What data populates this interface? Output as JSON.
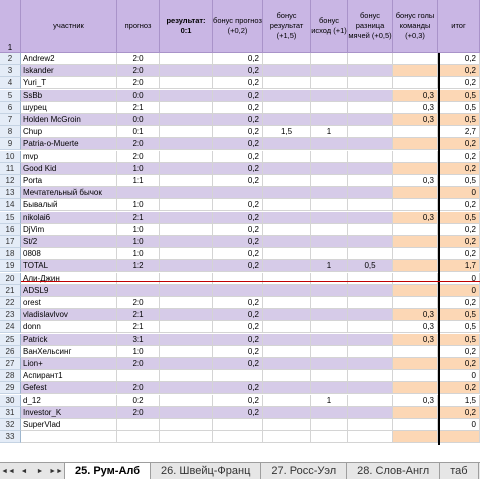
{
  "header": {
    "row_number": "1",
    "columns": [
      "участник",
      "прогноз",
      "результат: 0:1",
      "бонус прогноз (+0,2)",
      "бонус результат (+1,5)",
      "бонус исход (+1)",
      "бонус разница мячей (+0,5)",
      "бонус голы команды (+0,3)",
      "итог"
    ]
  },
  "rows": [
    {
      "n": "2",
      "name": "Andrew2",
      "prog": "2:0",
      "b1": "0,2",
      "b2": "",
      "b3": "",
      "b4": "",
      "b5": "",
      "total": "0,2"
    },
    {
      "n": "3",
      "name": "Iskander",
      "prog": "2:0",
      "b1": "0,2",
      "b2": "",
      "b3": "",
      "b4": "",
      "b5": "",
      "total": "0,2"
    },
    {
      "n": "4",
      "name": "Yuri_T",
      "prog": "2:0",
      "b1": "0,2",
      "b2": "",
      "b3": "",
      "b4": "",
      "b5": "",
      "total": "0,2"
    },
    {
      "n": "5",
      "name": "SsBb",
      "prog": "0:0",
      "b1": "0,2",
      "b2": "",
      "b3": "",
      "b4": "",
      "b5": "0,3",
      "total": "0,5"
    },
    {
      "n": "6",
      "name": "шурец",
      "prog": "2:1",
      "b1": "0,2",
      "b2": "",
      "b3": "",
      "b4": "",
      "b5": "0,3",
      "total": "0,5"
    },
    {
      "n": "7",
      "name": "Holden McGroin",
      "prog": "0:0",
      "b1": "0,2",
      "b2": "",
      "b3": "",
      "b4": "",
      "b5": "0,3",
      "total": "0,5"
    },
    {
      "n": "8",
      "name": "Chup",
      "prog": "0:1",
      "b1": "0,2",
      "b2": "1,5",
      "b3": "1",
      "b4": "",
      "b5": "",
      "total": "2,7"
    },
    {
      "n": "9",
      "name": "Patria-o-Muerte",
      "prog": "2:0",
      "b1": "0,2",
      "b2": "",
      "b3": "",
      "b4": "",
      "b5": "",
      "total": "0,2"
    },
    {
      "n": "10",
      "name": "mvp",
      "prog": "2:0",
      "b1": "0,2",
      "b2": "",
      "b3": "",
      "b4": "",
      "b5": "",
      "total": "0,2"
    },
    {
      "n": "11",
      "name": "Good Kid",
      "prog": "1:0",
      "b1": "0,2",
      "b2": "",
      "b3": "",
      "b4": "",
      "b5": "",
      "total": "0,2"
    },
    {
      "n": "12",
      "name": "Porta",
      "prog": "1:1",
      "b1": "0,2",
      "b2": "",
      "b3": "",
      "b4": "",
      "b5": "0,3",
      "total": "0,5"
    },
    {
      "n": "13",
      "name": "Мечтательный бычок",
      "prog": "",
      "b1": "",
      "b2": "",
      "b3": "",
      "b4": "",
      "b5": "",
      "total": "0"
    },
    {
      "n": "14",
      "name": "Бывалый",
      "prog": "1:0",
      "b1": "0,2",
      "b2": "",
      "b3": "",
      "b4": "",
      "b5": "",
      "total": "0,2"
    },
    {
      "n": "15",
      "name": "nikolai6",
      "prog": "2:1",
      "b1": "0,2",
      "b2": "",
      "b3": "",
      "b4": "",
      "b5": "0,3",
      "total": "0,5"
    },
    {
      "n": "16",
      "name": "DjVim",
      "prog": "1:0",
      "b1": "0,2",
      "b2": "",
      "b3": "",
      "b4": "",
      "b5": "",
      "total": "0,2"
    },
    {
      "n": "17",
      "name": "St/2",
      "prog": "1:0",
      "b1": "0,2",
      "b2": "",
      "b3": "",
      "b4": "",
      "b5": "",
      "total": "0,2"
    },
    {
      "n": "18",
      "name": "0808",
      "prog": "1:0",
      "b1": "0,2",
      "b2": "",
      "b3": "",
      "b4": "",
      "b5": "",
      "total": "0,2"
    },
    {
      "n": "19",
      "name": "TOTAL",
      "prog": "1:2",
      "b1": "0,2",
      "b2": "",
      "b3": "1",
      "b4": "0,5",
      "b5": "",
      "total": "1,7"
    },
    {
      "n": "20",
      "name": "Али-Джин",
      "prog": "",
      "b1": "",
      "b2": "",
      "b3": "",
      "b4": "",
      "b5": "",
      "total": "0"
    },
    {
      "n": "21",
      "name": "ADSL9",
      "prog": "",
      "b1": "",
      "b2": "",
      "b3": "",
      "b4": "",
      "b5": "",
      "total": "0"
    },
    {
      "n": "22",
      "name": "orest",
      "prog": "2:0",
      "b1": "0,2",
      "b2": "",
      "b3": "",
      "b4": "",
      "b5": "",
      "total": "0,2"
    },
    {
      "n": "23",
      "name": "vladislavlvov",
      "prog": "2:1",
      "b1": "0,2",
      "b2": "",
      "b3": "",
      "b4": "",
      "b5": "0,3",
      "total": "0,5"
    },
    {
      "n": "24",
      "name": "donn",
      "prog": "2:1",
      "b1": "0,2",
      "b2": "",
      "b3": "",
      "b4": "",
      "b5": "0,3",
      "total": "0,5"
    },
    {
      "n": "25",
      "name": "Patrick",
      "prog": "3:1",
      "b1": "0,2",
      "b2": "",
      "b3": "",
      "b4": "",
      "b5": "0,3",
      "total": "0,5"
    },
    {
      "n": "26",
      "name": "ВанХельсинг",
      "prog": "1:0",
      "b1": "0,2",
      "b2": "",
      "b3": "",
      "b4": "",
      "b5": "",
      "total": "0,2"
    },
    {
      "n": "27",
      "name": "Lion+",
      "prog": "2:0",
      "b1": "0,2",
      "b2": "",
      "b3": "",
      "b4": "",
      "b5": "",
      "total": "0,2"
    },
    {
      "n": "28",
      "name": "Аспирант1",
      "prog": "",
      "b1": "",
      "b2": "",
      "b3": "",
      "b4": "",
      "b5": "",
      "total": "0"
    },
    {
      "n": "29",
      "name": "Gefest",
      "prog": "2:0",
      "b1": "0,2",
      "b2": "",
      "b3": "",
      "b4": "",
      "b5": "",
      "total": "0,2"
    },
    {
      "n": "30",
      "name": "d_12",
      "prog": "0:2",
      "b1": "0,2",
      "b2": "",
      "b3": "1",
      "b4": "",
      "b5": "0,3",
      "total": "1,5"
    },
    {
      "n": "31",
      "name": "Investor_K",
      "prog": "2:0",
      "b1": "0,2",
      "b2": "",
      "b3": "",
      "b4": "",
      "b5": "",
      "total": "0,2"
    },
    {
      "n": "32",
      "name": "SuperVlad",
      "prog": "",
      "b1": "",
      "b2": "",
      "b3": "",
      "b4": "",
      "b5": "",
      "total": "0"
    },
    {
      "n": "33",
      "name": "",
      "prog": "",
      "b1": "",
      "b2": "",
      "b3": "",
      "b4": "",
      "b5": "",
      "total": ""
    }
  ],
  "tabs": {
    "nav": [
      "◄◄",
      "◄",
      "►",
      "►►"
    ],
    "items": [
      "25. Рум-Алб",
      "26. Швейц-Франц",
      "27. Росс-Уэл",
      "28. Слов-Англ",
      "таб"
    ],
    "active_index": 0
  },
  "colors": {
    "header_bg": "#c9b6e4",
    "row_lavender": "#d6cbe8",
    "row_peach": "#fcd7b5",
    "separator_red": "#c00000"
  }
}
